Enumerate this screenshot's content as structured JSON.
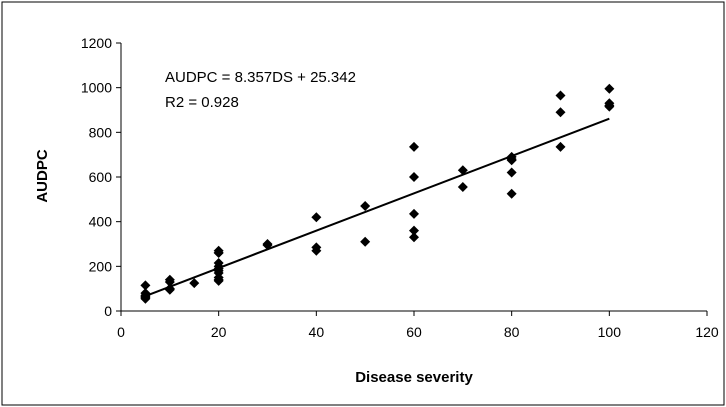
{
  "chart_data": {
    "type": "scatter",
    "title": "",
    "xlabel": "Disease severity",
    "ylabel": "AUDPC",
    "xlim": [
      0,
      120
    ],
    "ylim": [
      0,
      1200
    ],
    "xticks": [
      0,
      20,
      40,
      60,
      80,
      100,
      120
    ],
    "yticks": [
      0,
      200,
      400,
      600,
      800,
      1000,
      1200
    ],
    "grid": false,
    "legend": "none",
    "marker": "diamond",
    "marker_color": "#000000",
    "series": [
      {
        "x": [
          5,
          5,
          5,
          5,
          5,
          5,
          10,
          10,
          10,
          10,
          15,
          20,
          20,
          20,
          20,
          20,
          20,
          20,
          20,
          20,
          20,
          20,
          30,
          30,
          40,
          40,
          40,
          50,
          50,
          60,
          60,
          60,
          60,
          60,
          70,
          70,
          80,
          80,
          80,
          80,
          80,
          90,
          90,
          90,
          100,
          100,
          100,
          100
        ],
        "y": [
          115,
          80,
          70,
          65,
          60,
          55,
          140,
          130,
          100,
          95,
          125,
          270,
          260,
          215,
          190,
          170,
          150,
          140,
          135,
          260,
          200,
          180,
          300,
          295,
          420,
          285,
          270,
          470,
          310,
          735,
          600,
          435,
          360,
          330,
          630,
          555,
          690,
          675,
          620,
          525,
          680,
          965,
          890,
          735,
          995,
          930,
          915,
          920
        ]
      }
    ],
    "trendline": {
      "type": "linear",
      "slope": 8.357,
      "intercept": 25.342,
      "x_range": [
        5,
        100
      ]
    },
    "annotations": [
      "AUDPC = 8.357DS + 25.342",
      "R2 = 0.928"
    ]
  }
}
